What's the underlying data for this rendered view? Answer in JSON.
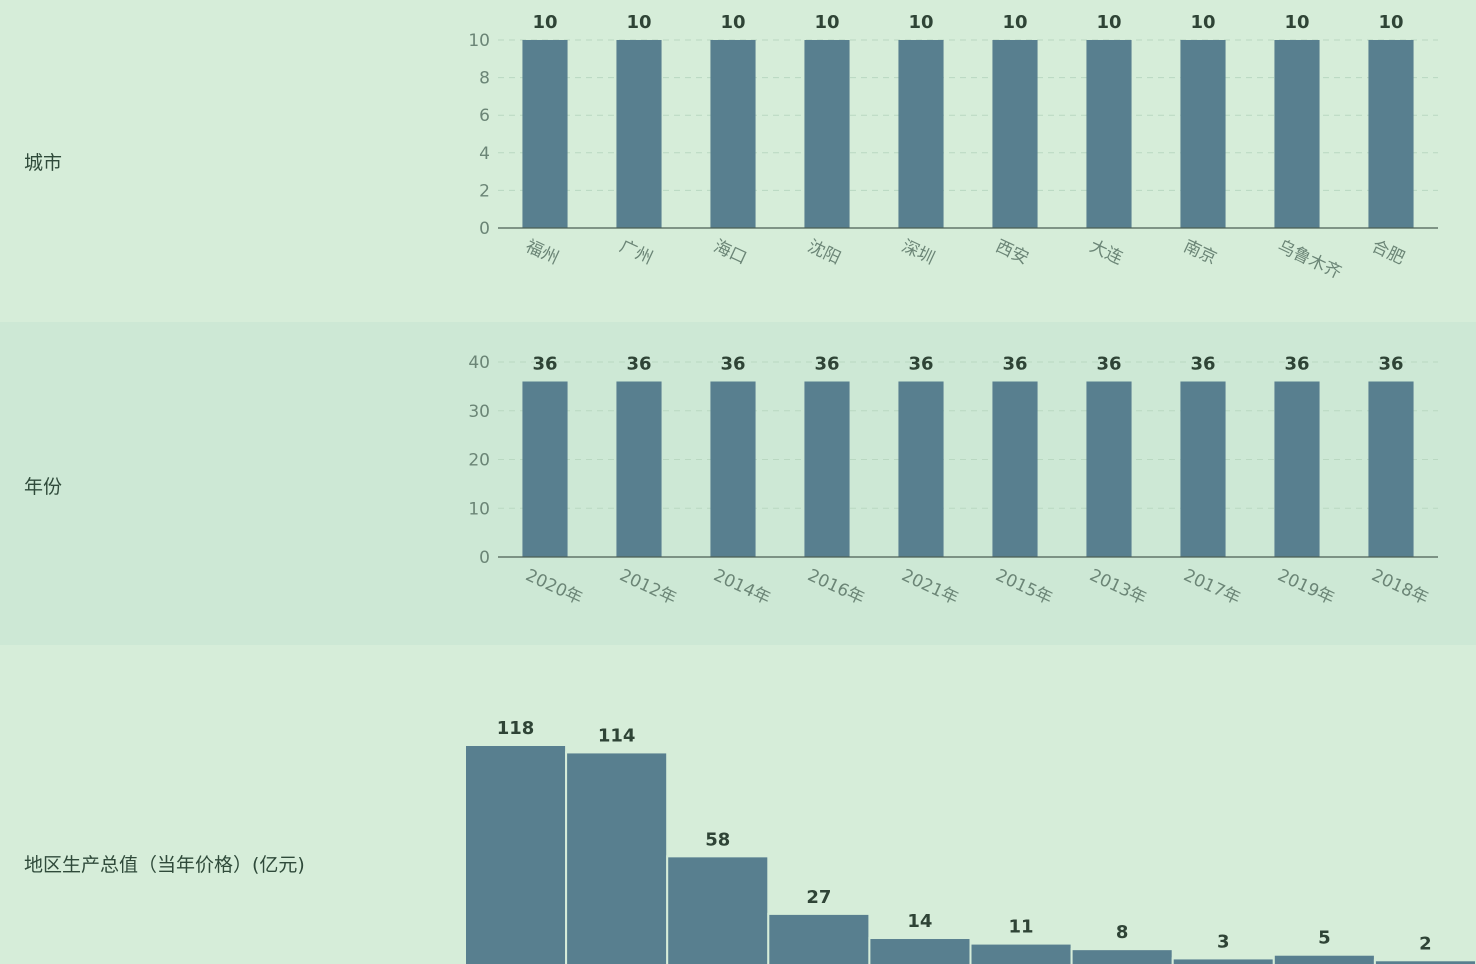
{
  "colors": {
    "background": "#d6edd9",
    "band": "#cde8d5",
    "bar": "#587f8f",
    "axis": "#4b5f55",
    "tick": "#6b8576",
    "label": "#2f4a3a"
  },
  "rows": [
    {
      "label": "城市"
    },
    {
      "label": "年份"
    },
    {
      "label": "地区生产总值（当年价格）(亿元)"
    }
  ],
  "chart_data": [
    {
      "type": "bar",
      "categories": [
        "福州",
        "广州",
        "海口",
        "沈阳",
        "深圳",
        "西安",
        "大连",
        "南京",
        "乌鲁木齐",
        "合肥"
      ],
      "values": [
        10,
        10,
        10,
        10,
        10,
        10,
        10,
        10,
        10,
        10
      ],
      "ylim": [
        0,
        10
      ],
      "yticks": [
        0,
        2,
        4,
        6,
        8,
        10
      ],
      "grid": true
    },
    {
      "type": "bar",
      "categories": [
        "2020年",
        "2012年",
        "2014年",
        "2016年",
        "2021年",
        "2015年",
        "2013年",
        "2017年",
        "2019年",
        "2018年"
      ],
      "values": [
        36,
        36,
        36,
        36,
        36,
        36,
        36,
        36,
        36,
        36
      ],
      "ylim": [
        0,
        40
      ],
      "yticks": [
        0,
        10,
        20,
        30,
        40
      ],
      "grid": true
    },
    {
      "type": "bar",
      "subtype": "histogram",
      "values": [
        118,
        114,
        58,
        27,
        14,
        11,
        8,
        3,
        5,
        2
      ],
      "grid": false
    }
  ]
}
